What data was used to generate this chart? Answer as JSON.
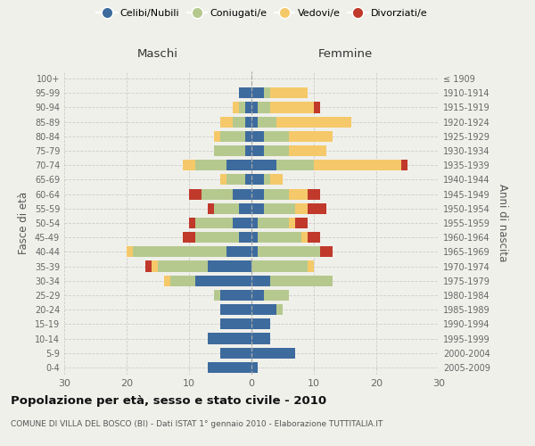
{
  "age_groups": [
    "0-4",
    "5-9",
    "10-14",
    "15-19",
    "20-24",
    "25-29",
    "30-34",
    "35-39",
    "40-44",
    "45-49",
    "50-54",
    "55-59",
    "60-64",
    "65-69",
    "70-74",
    "75-79",
    "80-84",
    "85-89",
    "90-94",
    "95-99",
    "100+"
  ],
  "birth_years": [
    "2005-2009",
    "2000-2004",
    "1995-1999",
    "1990-1994",
    "1985-1989",
    "1980-1984",
    "1975-1979",
    "1970-1974",
    "1965-1969",
    "1960-1964",
    "1955-1959",
    "1950-1954",
    "1945-1949",
    "1940-1944",
    "1935-1939",
    "1930-1934",
    "1925-1929",
    "1920-1924",
    "1915-1919",
    "1910-1914",
    "≤ 1909"
  ],
  "male": {
    "celibi": [
      7,
      5,
      7,
      5,
      5,
      5,
      9,
      7,
      4,
      2,
      3,
      2,
      3,
      1,
      4,
      1,
      1,
      1,
      1,
      2,
      0
    ],
    "coniugati": [
      0,
      0,
      0,
      0,
      0,
      1,
      4,
      8,
      15,
      7,
      6,
      4,
      5,
      3,
      5,
      5,
      4,
      2,
      1,
      0,
      0
    ],
    "vedovi": [
      0,
      0,
      0,
      0,
      0,
      0,
      1,
      1,
      1,
      0,
      0,
      0,
      0,
      1,
      2,
      0,
      1,
      2,
      1,
      0,
      0
    ],
    "divorziati": [
      0,
      0,
      0,
      0,
      0,
      0,
      0,
      1,
      0,
      2,
      1,
      1,
      2,
      0,
      0,
      0,
      0,
      0,
      0,
      0,
      0
    ]
  },
  "female": {
    "nubili": [
      1,
      7,
      3,
      3,
      4,
      2,
      3,
      0,
      1,
      1,
      1,
      2,
      2,
      2,
      4,
      2,
      2,
      1,
      1,
      2,
      0
    ],
    "coniugate": [
      0,
      0,
      0,
      0,
      1,
      4,
      10,
      9,
      10,
      7,
      5,
      5,
      4,
      1,
      6,
      4,
      4,
      3,
      2,
      1,
      0
    ],
    "vedove": [
      0,
      0,
      0,
      0,
      0,
      0,
      0,
      1,
      0,
      1,
      1,
      2,
      3,
      2,
      14,
      6,
      7,
      12,
      7,
      6,
      0
    ],
    "divorziate": [
      0,
      0,
      0,
      0,
      0,
      0,
      0,
      0,
      2,
      2,
      2,
      3,
      2,
      0,
      1,
      0,
      0,
      0,
      1,
      0,
      0
    ]
  },
  "colors": {
    "celibi_nubili": "#3d6b9e",
    "coniugati": "#b5c98e",
    "vedovi": "#f5c96a",
    "divorziati": "#c0392b"
  },
  "xlim": 30,
  "title": "Popolazione per età, sesso e stato civile - 2010",
  "subtitle": "COMUNE DI VILLA DEL BOSCO (BI) - Dati ISTAT 1° gennaio 2010 - Elaborazione TUTTITALIA.IT",
  "ylabel_left": "Fasce di età",
  "ylabel_right": "Anni di nascita",
  "label_maschi": "Maschi",
  "label_femmine": "Femmine",
  "legend_labels": [
    "Celibi/Nubili",
    "Coniugati/e",
    "Vedovi/e",
    "Divorziati/e"
  ],
  "bg_color": "#f0f0eb"
}
